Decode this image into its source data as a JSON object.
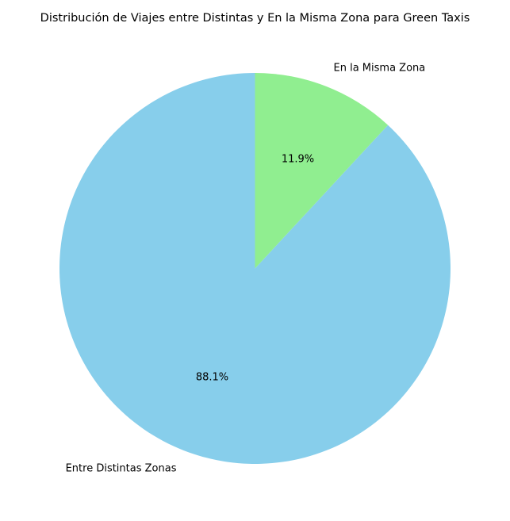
{
  "chart_data": {
    "type": "pie",
    "title": "Distribución de Viajes entre Distintas y En la Misma Zona para Green Taxis",
    "start_angle_deg": 90,
    "direction": "counterclockwise",
    "slices": [
      {
        "label": "Entre Distintas Zonas",
        "value": 88.1,
        "pct_label": "88.1%",
        "color": "#87CEEB"
      },
      {
        "label": "En la Misma Zona",
        "value": 11.9,
        "pct_label": "11.9%",
        "color": "#90EE90"
      }
    ]
  }
}
